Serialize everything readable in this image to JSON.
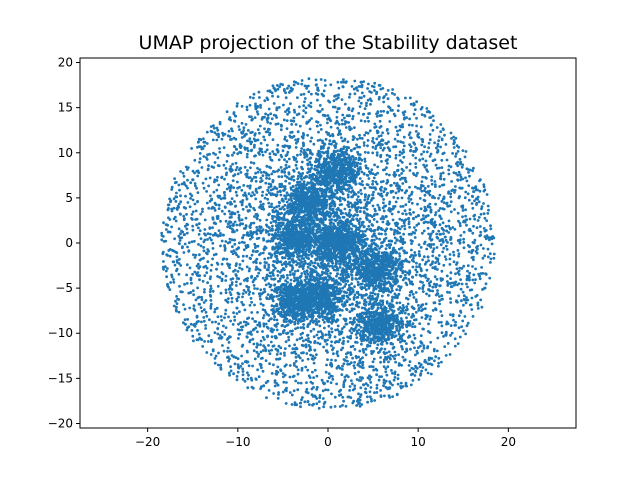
{
  "chart_data": {
    "type": "scatter",
    "title": "UMAP projection of the Stability dataset",
    "xlabel": "",
    "ylabel": "",
    "xlim": [
      -27.5,
      27.5
    ],
    "ylim": [
      -20.5,
      20.5
    ],
    "xticks": [
      -20,
      -10,
      0,
      10,
      20
    ],
    "yticks": [
      -20,
      -15,
      -10,
      -5,
      0,
      5,
      10,
      15,
      20
    ],
    "grid": false,
    "marker_color": "#1f77b4",
    "distribution": {
      "center": [
        0,
        0
      ],
      "x_range": [
        -18.5,
        18.5
      ],
      "y_range": [
        -18.5,
        18.5
      ],
      "dense_clusters": [
        {
          "x": -3.5,
          "y": 0.5
        },
        {
          "x": -2.0,
          "y": 4.5
        },
        {
          "x": 1.5,
          "y": 0.0
        },
        {
          "x": 5.5,
          "y": -3.0
        },
        {
          "x": -3.5,
          "y": -6.5
        },
        {
          "x": 5.5,
          "y": -9.0
        },
        {
          "x": -1.0,
          "y": -6.0
        },
        {
          "x": 1.0,
          "y": 8.0
        }
      ]
    }
  }
}
